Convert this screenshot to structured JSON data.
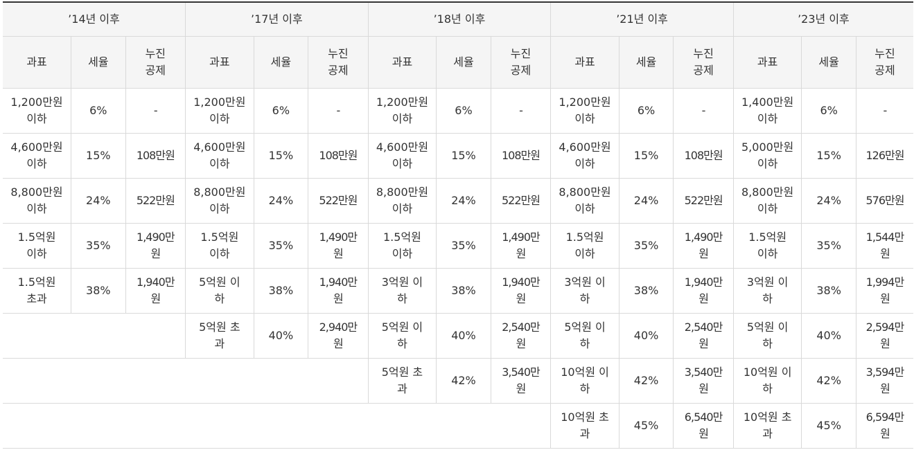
{
  "periods": [
    "’14년 이후",
    "’17년 이후",
    "’18년 이후",
    "’21년 이후",
    "’23년 이후"
  ],
  "columns": {
    "base": "과표",
    "rate": "세율",
    "deduction": "누진\n공제"
  },
  "rows": [
    [
      [
        "1,200만원\n이하",
        "6%",
        "-"
      ],
      [
        "1,200만원\n이하",
        "6%",
        "-"
      ],
      [
        "1,200만원\n이하",
        "6%",
        "-"
      ],
      [
        "1,200만원\n이하",
        "6%",
        "-"
      ],
      [
        "1,400만원\n이하",
        "6%",
        "-"
      ]
    ],
    [
      [
        "4,600만원\n이하",
        "15%",
        "108만원"
      ],
      [
        "4,600만원\n이하",
        "15%",
        "108만원"
      ],
      [
        "4,600만원\n이하",
        "15%",
        "108만원"
      ],
      [
        "4,600만원\n이하",
        "15%",
        "108만원"
      ],
      [
        "5,000만원\n이하",
        "15%",
        "126만원"
      ]
    ],
    [
      [
        "8,800만원\n이하",
        "24%",
        "522만원"
      ],
      [
        "8,800만원\n이하",
        "24%",
        "522만원"
      ],
      [
        "8,800만원\n이하",
        "24%",
        "522만원"
      ],
      [
        "8,800만원\n이하",
        "24%",
        "522만원"
      ],
      [
        "8,800만원\n이하",
        "24%",
        "576만원"
      ]
    ],
    [
      [
        "1.5억원\n이하",
        "35%",
        "1,490만\n원"
      ],
      [
        "1.5억원\n이하",
        "35%",
        "1,490만\n원"
      ],
      [
        "1.5억원\n이하",
        "35%",
        "1,490만\n원"
      ],
      [
        "1.5억원\n이하",
        "35%",
        "1,490만\n원"
      ],
      [
        "1.5억원\n이하",
        "35%",
        "1,544만\n원"
      ]
    ],
    [
      [
        "1.5억원\n초과",
        "38%",
        "1,940만\n원"
      ],
      [
        "5억원 이\n하",
        "38%",
        "1,940만\n원"
      ],
      [
        "3억원 이\n하",
        "38%",
        "1,940만\n원"
      ],
      [
        "3억원 이\n하",
        "38%",
        "1,940만\n원"
      ],
      [
        "3억원 이\n하",
        "38%",
        "1,994만\n원"
      ]
    ],
    [
      null,
      [
        "5억원 초\n과",
        "40%",
        "2,940만\n원"
      ],
      [
        "5억원 이\n하",
        "40%",
        "2,540만\n원"
      ],
      [
        "5억원 이\n하",
        "40%",
        "2,540만\n원"
      ],
      [
        "5억원 이\n하",
        "40%",
        "2,594만\n원"
      ]
    ],
    [
      null,
      null,
      [
        "5억원 초\n과",
        "42%",
        "3,540만\n원"
      ],
      [
        "10억원 이\n하",
        "42%",
        "3,540만\n원"
      ],
      [
        "10억원 이\n하",
        "42%",
        "3,594만\n원"
      ]
    ],
    [
      null,
      null,
      null,
      [
        "10억원 초\n과",
        "45%",
        "6,540만\n원"
      ],
      [
        "10억원 초\n과",
        "45%",
        "6,594만\n원"
      ]
    ]
  ]
}
